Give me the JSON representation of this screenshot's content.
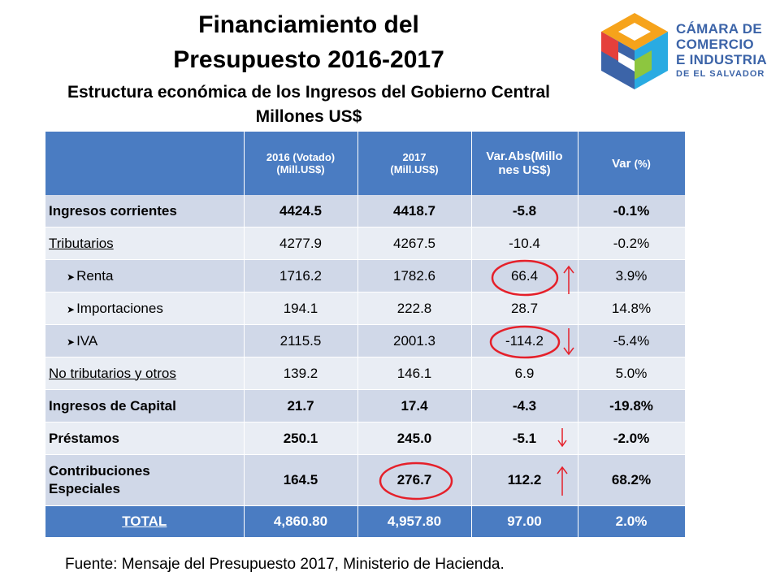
{
  "title": {
    "line1": "Financiamiento del",
    "line2": "Presupuesto 2016-2017",
    "subtitle1": "Estructura económica de los Ingresos del Gobierno Central",
    "subtitle2": "Millones US$"
  },
  "logo": {
    "line1": "CÁMARA DE",
    "line2": "COMERCIO",
    "line3": "E INDUSTRIA",
    "line4": "DE EL SALVADOR",
    "colors": [
      "#f6a31b",
      "#e5403b",
      "#3c64a8",
      "#8dc63f",
      "#29abe2"
    ]
  },
  "table": {
    "headers": {
      "col2016_line1": "2016  (Votado)",
      "col2016_line2": "(Mill.US$)",
      "col2017_line1": "2017",
      "col2017_line2": "(Mill.US$)",
      "var_abs_line1": "Var.Abs(Millo",
      "var_abs_line2": "nes US$)",
      "var_pct_a": "Var ",
      "var_pct_b": "(%)"
    },
    "rows": [
      {
        "label": "Ingresos corrientes",
        "v2016": "4424.5",
        "v2017": "4418.7",
        "var_abs": "-5.8",
        "var_pct": "-0.1%"
      },
      {
        "label": "Tributarios",
        "v2016": "4277.9",
        "v2017": "4267.5",
        "var_abs": "-10.4",
        "var_pct": "-0.2%"
      },
      {
        "label": "Renta",
        "v2016": "1716.2",
        "v2017": "1782.6",
        "var_abs": "66.4",
        "var_pct": "3.9%"
      },
      {
        "label": "Importaciones",
        "v2016": "194.1",
        "v2017": "222.8",
        "var_abs": "28.7",
        "var_pct": "14.8%"
      },
      {
        "label": "IVA",
        "v2016": "2115.5",
        "v2017": "2001.3",
        "var_abs": "-114.2",
        "var_pct": "-5.4%"
      },
      {
        "label": "No tributarios y otros",
        "v2016": "139.2",
        "v2017": "146.1",
        "var_abs": "6.9",
        "var_pct": "5.0%"
      },
      {
        "label": "Ingresos de Capital",
        "v2016": "21.7",
        "v2017": "17.4",
        "var_abs": "-4.3",
        "var_pct": "-19.8%"
      },
      {
        "label": "Préstamos",
        "v2016": "250.1",
        "v2017": "245.0",
        "var_abs": "-5.1",
        "var_pct": "-2.0%"
      },
      {
        "label_line1": "Contribuciones",
        "label_line2": "Especiales",
        "v2016": "164.5",
        "v2017": "276.7",
        "var_abs": "112.2",
        "var_pct": "68.2%"
      }
    ],
    "total": {
      "label": "TOTAL",
      "v2016": "4,860.80",
      "v2017": "4,957.80",
      "var_abs": "97.00",
      "var_pct": "2.0%"
    }
  },
  "annotations": {
    "circle_color": "#e5202a",
    "arrow_color": "#e5202a"
  },
  "source": "Fuente: Mensaje del Presupuesto 2017,  Ministerio de Hacienda."
}
